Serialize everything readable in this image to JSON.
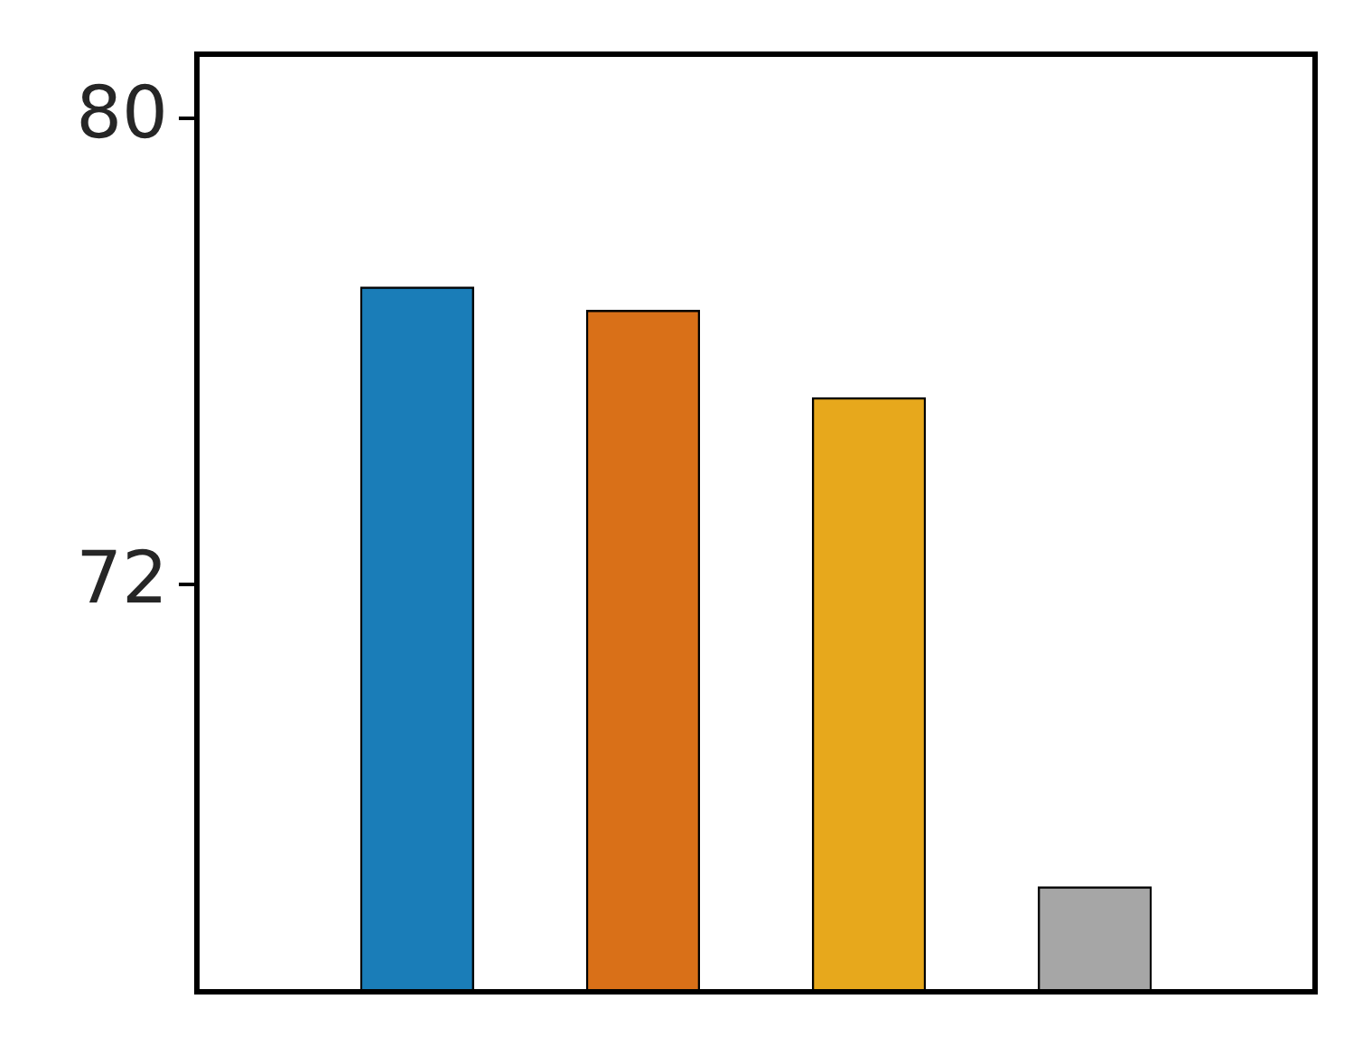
{
  "chart_data": {
    "type": "bar",
    "categories": [
      null,
      null,
      null,
      null
    ],
    "values": [
      77.1,
      76.7,
      75.2,
      66.8
    ],
    "colors": [
      "#1a7db8",
      "#d97018",
      "#e7a81c",
      "#a6a6a6"
    ],
    "ylim": [
      65,
      81.1
    ],
    "yticks": [
      72,
      80
    ],
    "grid": false,
    "legend": false
  }
}
